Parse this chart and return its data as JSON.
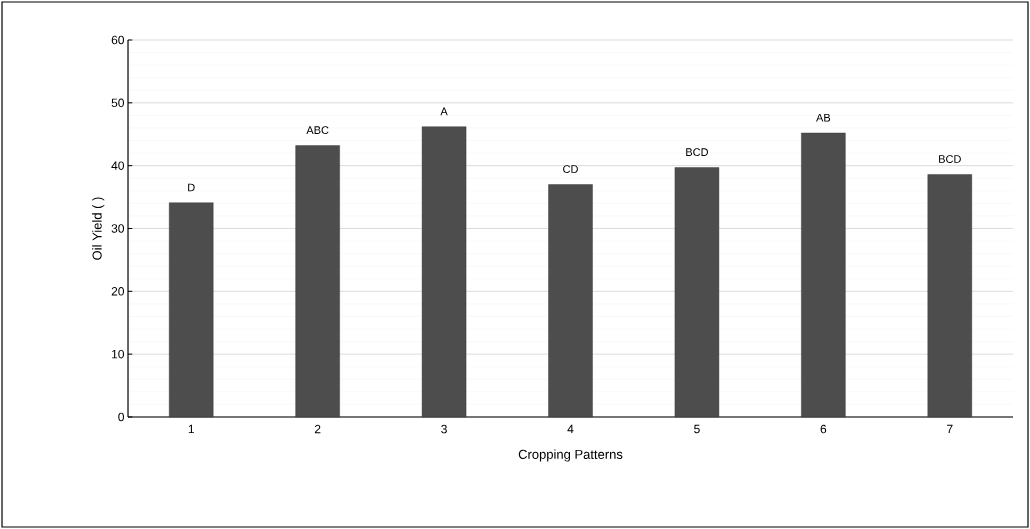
{
  "chart_data": {
    "type": "bar",
    "xlabel": "Cropping Patterns",
    "ylabel": "Oil Yield (  )",
    "categories": [
      "1",
      "2",
      "3",
      "4",
      "5",
      "6",
      "7"
    ],
    "values": [
      34.1,
      43.2,
      46.2,
      37.0,
      39.7,
      45.2,
      38.6
    ],
    "value_labels": [
      "D",
      "ABC",
      "A",
      "CD",
      "BCD",
      "AB",
      "BCD"
    ],
    "color": "#4d4d4d",
    "ylim": [
      0,
      60
    ],
    "yticks": [
      0,
      10,
      20,
      30,
      40,
      50,
      60
    ],
    "grid": "y"
  }
}
